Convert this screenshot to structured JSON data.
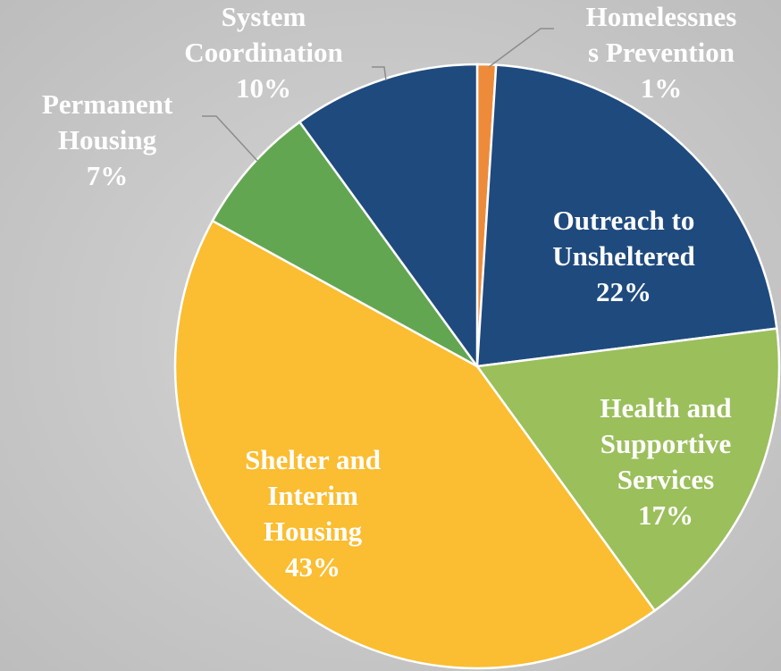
{
  "chart_data": {
    "type": "pie",
    "categories": [
      "Homelessnes\ns Prevention",
      "Outreach to\nUnsheltered",
      "Health and\nSupportive\nServices",
      "Shelter and\nInterim\nHousing",
      "Permanent\nHousing",
      "System\nCoordination"
    ],
    "values": [
      1,
      22,
      17,
      43,
      7,
      10
    ],
    "value_labels": [
      "1%",
      "22%",
      "17%",
      "43%",
      "7%",
      "10%"
    ],
    "colors": [
      "#ed8b3a",
      "#1f4a7e",
      "#9bbf5b",
      "#fbbd31",
      "#63a651",
      "#1f4a7e"
    ]
  }
}
